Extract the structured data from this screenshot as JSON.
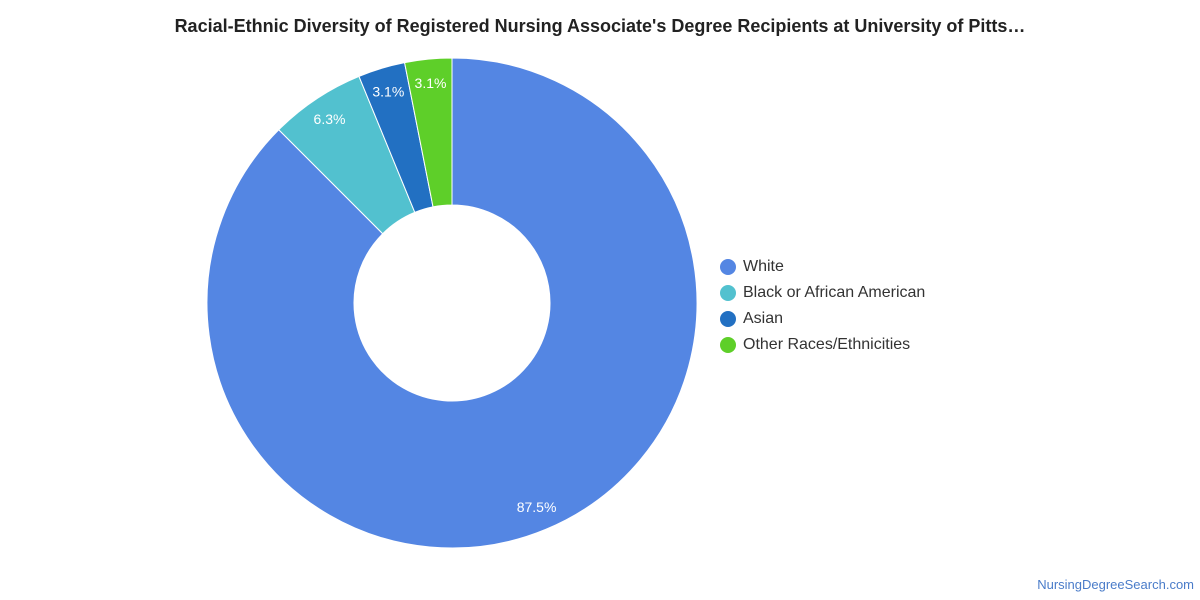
{
  "chart_data": {
    "type": "pie",
    "variant": "donut",
    "title": "Racial-Ethnic Diversity of Registered Nursing Associate's Degree Recipients at University of Pitts…",
    "legend_position": "right",
    "slices": [
      {
        "name": "White",
        "value": 87.5,
        "label": "87.5%",
        "color": "#5486e3"
      },
      {
        "name": "Black or African American",
        "value": 6.3,
        "label": "6.3%",
        "color": "#52c1cf"
      },
      {
        "name": "Asian",
        "value": 3.1,
        "label": "3.1%",
        "color": "#2270c2"
      },
      {
        "name": "Other Races/Ethnicities",
        "value": 3.1,
        "label": "3.1%",
        "color": "#5ecf29"
      }
    ]
  },
  "watermark": "NursingDegreeSearch.com"
}
